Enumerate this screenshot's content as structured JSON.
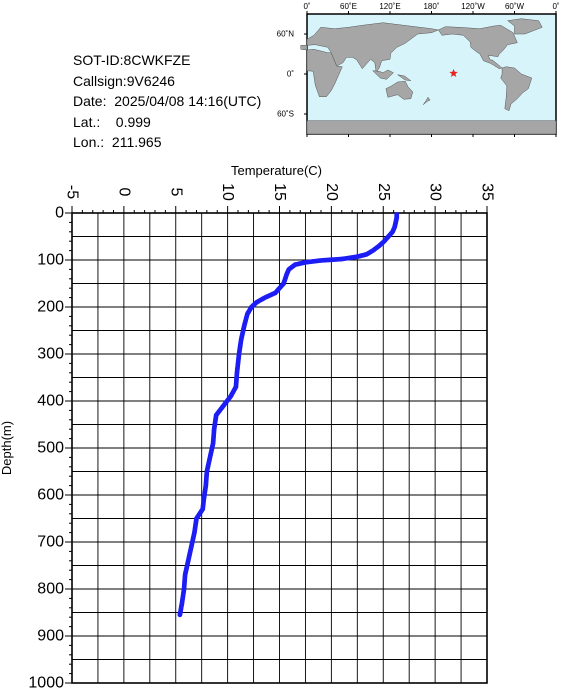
{
  "info": {
    "sot_id": "SOT-ID:8CWKFZE",
    "callsign": "Callsign:9V6246",
    "date": "Date:  2025/04/08 14:16(UTC)",
    "lat": "Lat.:    0.999",
    "lon": "Lon.:  211.965"
  },
  "map": {
    "top_labels": [
      "0˚",
      "60˚E",
      "120˚E",
      "180˚",
      "120˚W",
      "60˚W",
      "0˚"
    ],
    "left_labels": [
      "60˚N",
      "0˚",
      "60˚S"
    ],
    "ocean_color": "#d7f4fb",
    "land_color": "#a6a6a6",
    "marker_color": "#e8231f",
    "marker_icon": "star-icon",
    "marker": {
      "lat": 0.999,
      "lon": 211.965
    }
  },
  "chart_data": {
    "type": "scatter",
    "xlabel": "Temperature(C)",
    "ylabel": "Depth(m)",
    "xlim": [
      -5,
      35
    ],
    "ylim": [
      1000,
      0
    ],
    "x_ticks": [
      "-5",
      "0",
      "5",
      "10",
      "15",
      "20",
      "25",
      "30",
      "35"
    ],
    "y_ticks": [
      "0",
      "100",
      "200",
      "300",
      "400",
      "500",
      "600",
      "700",
      "800",
      "900",
      "1000"
    ],
    "grid": true,
    "series_color": "#1d1df5",
    "series": [
      {
        "points": [
          [
            26.3,
            3
          ],
          [
            26.3,
            10
          ],
          [
            26.2,
            20
          ],
          [
            26.1,
            30
          ],
          [
            25.9,
            40
          ],
          [
            25.5,
            50
          ],
          [
            25.1,
            60
          ],
          [
            24.6,
            70
          ],
          [
            24.0,
            80
          ],
          [
            23.4,
            88
          ],
          [
            22.5,
            93
          ],
          [
            21.0,
            98
          ],
          [
            19.0,
            101
          ],
          [
            17.5,
            105
          ],
          [
            16.5,
            110
          ],
          [
            15.9,
            120
          ],
          [
            15.7,
            130
          ],
          [
            15.4,
            150
          ],
          [
            14.6,
            170
          ],
          [
            13.6,
            180
          ],
          [
            12.8,
            190
          ],
          [
            12.3,
            200
          ],
          [
            11.9,
            215
          ],
          [
            11.6,
            240
          ],
          [
            11.3,
            270
          ],
          [
            11.1,
            300
          ],
          [
            10.9,
            340
          ],
          [
            10.8,
            370
          ],
          [
            10.3,
            390
          ],
          [
            9.6,
            410
          ],
          [
            8.9,
            430
          ],
          [
            8.7,
            460
          ],
          [
            8.6,
            490
          ],
          [
            8.3,
            520
          ],
          [
            8.0,
            550
          ],
          [
            7.9,
            580
          ],
          [
            7.7,
            610
          ],
          [
            7.6,
            630
          ],
          [
            7.0,
            650
          ],
          [
            6.8,
            680
          ],
          [
            6.5,
            710
          ],
          [
            6.2,
            740
          ],
          [
            5.9,
            770
          ],
          [
            5.8,
            800
          ],
          [
            5.6,
            830
          ],
          [
            5.4,
            855
          ]
        ]
      }
    ]
  }
}
